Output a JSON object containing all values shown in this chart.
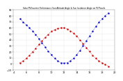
{
  "title": "Solar PV/Inverter Performance Sun Altitude Angle & Sun Incidence Angle on PV Panels",
  "bg_color": "#ffffff",
  "fig_bg": "#ffffff",
  "grid_color": "#aaaaaa",
  "xlim": [
    4,
    20
  ],
  "ylim": [
    -10,
    90
  ],
  "xtick_vals": [
    4,
    6,
    8,
    10,
    12,
    14,
    16,
    18,
    20
  ],
  "ytick_vals": [
    -10,
    0,
    10,
    20,
    30,
    40,
    50,
    60,
    70,
    80,
    90
  ],
  "sun_altitude_x": [
    5.0,
    5.5,
    6.0,
    6.5,
    7.0,
    7.5,
    8.0,
    8.5,
    9.0,
    9.5,
    10.0,
    10.5,
    11.0,
    11.5,
    12.0,
    12.5,
    13.0,
    13.5,
    14.0,
    14.5,
    15.0,
    15.5,
    16.0,
    16.5,
    17.0,
    17.5,
    18.0,
    18.5,
    19.0
  ],
  "sun_altitude_y": [
    2,
    5,
    9,
    14,
    20,
    26,
    32,
    38,
    44,
    49,
    54,
    57,
    59,
    60,
    60,
    58,
    55,
    51,
    46,
    40,
    34,
    27,
    21,
    14,
    9,
    5,
    2,
    -1,
    -4
  ],
  "incidence_x": [
    5.0,
    5.5,
    6.0,
    6.5,
    7.0,
    7.5,
    8.0,
    8.5,
    9.0,
    9.5,
    10.0,
    10.5,
    11.0,
    11.5,
    12.0,
    12.5,
    13.0,
    13.5,
    14.0,
    14.5,
    15.0,
    15.5,
    16.0,
    16.5,
    17.0,
    17.5,
    18.0,
    18.5,
    19.0
  ],
  "incidence_y": [
    75,
    70,
    65,
    60,
    55,
    49,
    42,
    35,
    28,
    21,
    15,
    9,
    5,
    2,
    1,
    2,
    5,
    9,
    15,
    22,
    30,
    38,
    46,
    54,
    62,
    69,
    75,
    80,
    85
  ],
  "red_color": "#cc0000",
  "blue_color": "#0000cc",
  "marker_size": 1.5,
  "line_width": 0.5
}
